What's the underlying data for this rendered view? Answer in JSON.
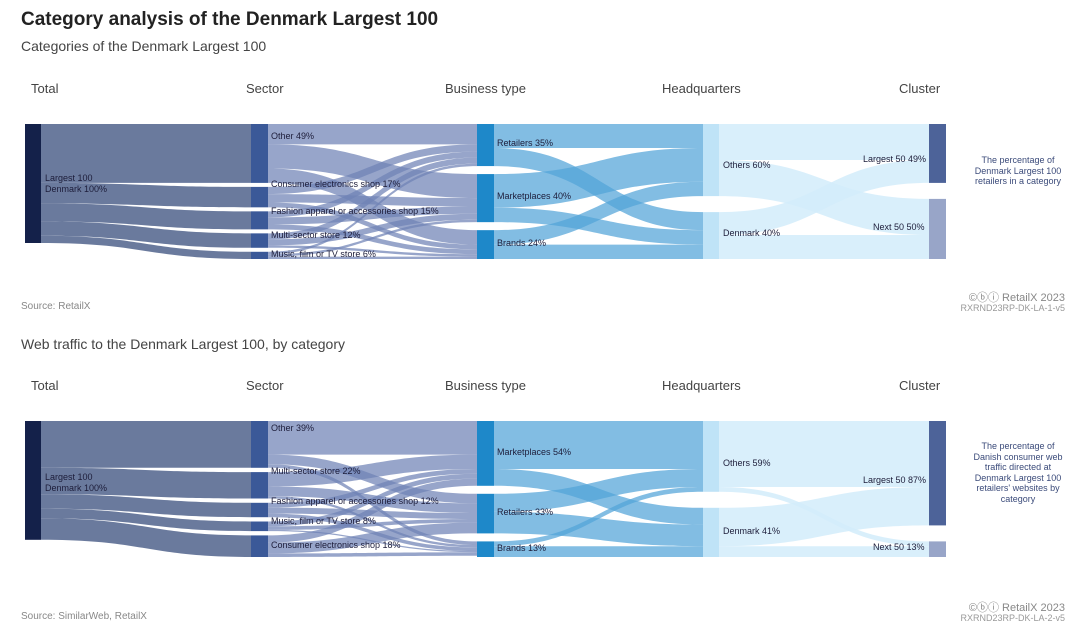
{
  "title": "Category analysis of the Denmark Largest 100",
  "chart_data": [
    {
      "type": "sankey",
      "subtitle": "Categories of the Denmark Largest 100",
      "column_headers": [
        "Total",
        "Sector",
        "Business type",
        "Headquarters",
        "Cluster"
      ],
      "unit": "% of Denmark Largest 100 retailers",
      "nodes": [
        {
          "id": "t",
          "col": 0,
          "name": "Largest 100",
          "name2": "Denmark 100%",
          "value": 100
        },
        {
          "id": "s1",
          "col": 1,
          "name": "Other 49%",
          "value": 49
        },
        {
          "id": "s2",
          "col": 1,
          "name": "Consumer electronics shop 17%",
          "value": 17
        },
        {
          "id": "s3",
          "col": 1,
          "name": "Fashion apparel or accessories shop 15%",
          "value": 15
        },
        {
          "id": "s4",
          "col": 1,
          "name": "Multi-sector store 12%",
          "value": 12
        },
        {
          "id": "s5",
          "col": 1,
          "name": "Music, film or TV store 6%",
          "value": 6
        },
        {
          "id": "b1",
          "col": 2,
          "name": "Retailers 35%",
          "value": 35
        },
        {
          "id": "b2",
          "col": 2,
          "name": "Marketplaces 40%",
          "value": 40
        },
        {
          "id": "b3",
          "col": 2,
          "name": "Brands 24%",
          "value": 24
        },
        {
          "id": "h1",
          "col": 3,
          "name": "Others 60%",
          "value": 60
        },
        {
          "id": "h2",
          "col": 3,
          "name": "Denmark 40%",
          "value": 40
        },
        {
          "id": "c1",
          "col": 4,
          "name": "Largest 50 49%",
          "value": 49
        },
        {
          "id": "c2",
          "col": 4,
          "name": "Next 50 50%",
          "value": 50
        }
      ],
      "links": [
        [
          "t",
          "s1",
          49
        ],
        [
          "t",
          "s2",
          17
        ],
        [
          "t",
          "s3",
          15
        ],
        [
          "t",
          "s4",
          12
        ],
        [
          "t",
          "s5",
          6
        ],
        [
          "s1",
          "b1",
          17
        ],
        [
          "s1",
          "b2",
          20
        ],
        [
          "s1",
          "b3",
          12
        ],
        [
          "s2",
          "b1",
          6
        ],
        [
          "s2",
          "b2",
          7
        ],
        [
          "s2",
          "b3",
          4
        ],
        [
          "s3",
          "b1",
          5
        ],
        [
          "s3",
          "b2",
          6
        ],
        [
          "s3",
          "b3",
          4
        ],
        [
          "s4",
          "b1",
          5
        ],
        [
          "s4",
          "b2",
          5
        ],
        [
          "s4",
          "b3",
          2
        ],
        [
          "s5",
          "b1",
          2
        ],
        [
          "s5",
          "b2",
          2
        ],
        [
          "s5",
          "b3",
          2
        ],
        [
          "b1",
          "h1",
          20
        ],
        [
          "b1",
          "h2",
          15
        ],
        [
          "b2",
          "h1",
          28
        ],
        [
          "b2",
          "h2",
          12
        ],
        [
          "b3",
          "h1",
          12
        ],
        [
          "b3",
          "h2",
          12
        ],
        [
          "h1",
          "c1",
          30
        ],
        [
          "h1",
          "c2",
          30
        ],
        [
          "h2",
          "c1",
          19
        ],
        [
          "h2",
          "c2",
          20
        ]
      ],
      "note": "The percentage of Denmark Largest 100 retailers in a category",
      "source": "Source: RetailX",
      "brand": "©ⓑⓘ RetailX 2023",
      "code": "RXRND23RP-DK-LA-1-v5"
    },
    {
      "type": "sankey",
      "subtitle": "Web traffic to the Denmark Largest 100, by category",
      "column_headers": [
        "Total",
        "Sector",
        "Business type",
        "Headquarters",
        "Cluster"
      ],
      "unit": "% of Danish consumer web traffic",
      "nodes": [
        {
          "id": "t",
          "col": 0,
          "name": "Largest 100",
          "name2": "Denmark 100%",
          "value": 100
        },
        {
          "id": "s1",
          "col": 1,
          "name": "Other 39%",
          "value": 39
        },
        {
          "id": "s2",
          "col": 1,
          "name": "Multi-sector store 22%",
          "value": 22
        },
        {
          "id": "s3",
          "col": 1,
          "name": "Fashion apparel or accessories shop 12%",
          "value": 12
        },
        {
          "id": "s4",
          "col": 1,
          "name": "Music, film or TV store 8%",
          "value": 8
        },
        {
          "id": "s5",
          "col": 1,
          "name": "Consumer electronics shop 18%",
          "value": 18
        },
        {
          "id": "b1",
          "col": 2,
          "name": "Marketplaces 54%",
          "value": 54
        },
        {
          "id": "b2",
          "col": 2,
          "name": "Retailers 33%",
          "value": 33
        },
        {
          "id": "b3",
          "col": 2,
          "name": "Brands 13%",
          "value": 13
        },
        {
          "id": "h1",
          "col": 3,
          "name": "Others 59%",
          "value": 59
        },
        {
          "id": "h2",
          "col": 3,
          "name": "Denmark 41%",
          "value": 41
        },
        {
          "id": "c1",
          "col": 4,
          "name": "Largest 50 87%",
          "value": 87
        },
        {
          "id": "c2",
          "col": 4,
          "name": "Next 50 13%",
          "value": 13
        }
      ],
      "links": [
        [
          "t",
          "s1",
          39
        ],
        [
          "t",
          "s2",
          22
        ],
        [
          "t",
          "s3",
          12
        ],
        [
          "t",
          "s4",
          8
        ],
        [
          "t",
          "s5",
          18
        ],
        [
          "s1",
          "b1",
          28
        ],
        [
          "s1",
          "b2",
          8
        ],
        [
          "s1",
          "b3",
          3
        ],
        [
          "s2",
          "b1",
          12
        ],
        [
          "s2",
          "b2",
          8
        ],
        [
          "s2",
          "b3",
          2
        ],
        [
          "s3",
          "b1",
          4
        ],
        [
          "s3",
          "b2",
          5
        ],
        [
          "s3",
          "b3",
          3
        ],
        [
          "s4",
          "b1",
          4
        ],
        [
          "s4",
          "b2",
          3
        ],
        [
          "s4",
          "b3",
          1
        ],
        [
          "s5",
          "b1",
          6
        ],
        [
          "s5",
          "b2",
          9
        ],
        [
          "s5",
          "b3",
          3
        ],
        [
          "b1",
          "h1",
          40
        ],
        [
          "b1",
          "h2",
          14
        ],
        [
          "b2",
          "h1",
          15
        ],
        [
          "b2",
          "h2",
          18
        ],
        [
          "b3",
          "h1",
          4
        ],
        [
          "b3",
          "h2",
          9
        ],
        [
          "h1",
          "c1",
          55
        ],
        [
          "h1",
          "c2",
          4
        ],
        [
          "h2",
          "c1",
          32
        ],
        [
          "h2",
          "c2",
          9
        ]
      ],
      "note": "The percentage of Danish consumer web traffic directed at Denmark Largest 100 retailers' websites by category",
      "source": "Source: SimilarWeb, RetailX",
      "brand": "©ⓑⓘ RetailX 2023",
      "code": "RXRND23RP-DK-LA-2-v5"
    }
  ]
}
